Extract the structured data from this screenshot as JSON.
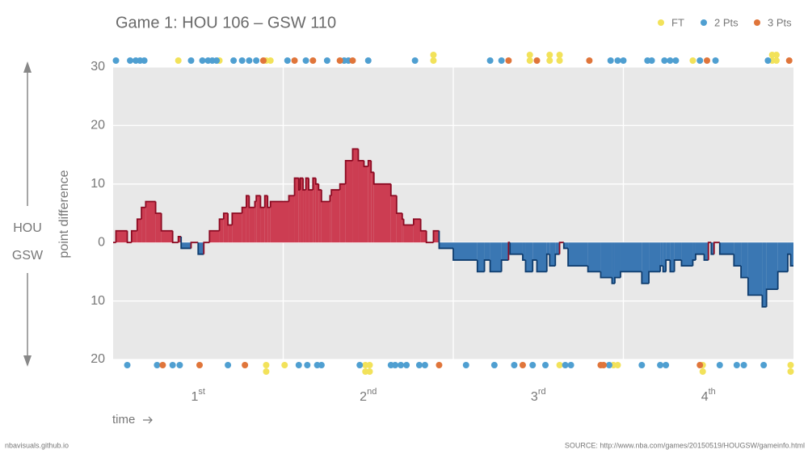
{
  "chart_data": {
    "type": "step-area",
    "title": "Game 1: HOU 106  –  GSW 110",
    "y_label": "point difference",
    "x_label": "time",
    "team_labels": [
      "HOU",
      "GSW"
    ],
    "footer_left": "nbavisuals.github.io",
    "footer_right": "SOURCE: http://www.nba.com/games/20150519/HOUGSW/gameinfo.html",
    "xlim": [
      0,
      48
    ],
    "ylim": [
      -20,
      30
    ],
    "xticks": [
      12,
      24,
      36
    ],
    "period_labels": [
      {
        "value": 6,
        "label": "1st"
      },
      {
        "value": 18,
        "label": "2nd"
      },
      {
        "value": 30,
        "label": "3rd"
      },
      {
        "value": 42,
        "label": "4th"
      }
    ],
    "yticks": [
      30,
      20,
      10,
      0,
      {
        "value": -10,
        "label": "10"
      },
      {
        "value": -20,
        "label": "20"
      }
    ],
    "grid": true,
    "fill_colors": [
      "#cc3d52",
      "#3a77b3"
    ],
    "line_colors": [
      "#8c0a22",
      "#0e3c6e"
    ],
    "x": [
      0,
      0.2,
      1.0,
      1.3,
      1.7,
      2.0,
      2.3,
      3.0,
      3.4,
      4.2,
      4.6,
      4.8,
      5.5,
      6.0,
      6.4,
      6.8,
      7.5,
      7.8,
      8.1,
      8.4,
      9.1,
      9.4,
      9.6,
      10.0,
      10.1,
      10.4,
      10.7,
      10.9,
      11.1,
      12.4,
      12.8,
      13.1,
      13.2,
      13.4,
      13.6,
      13.8,
      14.1,
      14.3,
      14.5,
      14.7,
      15.3,
      15.4,
      16.0,
      16.4,
      16.9,
      17.3,
      17.7,
      18.0,
      18.2,
      18.4,
      19.6,
      20.0,
      20.4,
      20.5,
      21.2,
      21.7,
      22.1,
      22.6,
      23.0,
      24.0,
      25.7,
      26.2,
      26.6,
      27.4,
      27.9,
      28.0,
      28.9,
      29.1,
      29.6,
      29.9,
      30.6,
      30.8,
      31.2,
      31.5,
      31.8,
      32.1,
      33.5,
      34.4,
      35.2,
      35.4,
      35.8,
      37.3,
      37.8,
      38.6,
      38.8,
      39.0,
      39.3,
      39.6,
      40.1,
      40.9,
      41.1,
      41.7,
      42.0,
      42.2,
      42.4,
      42.8,
      43.8,
      44.3,
      44.8,
      45.8,
      46.1,
      46.9,
      47.6,
      47.8
    ],
    "values": [
      0,
      2,
      0,
      2,
      4,
      6,
      7,
      5,
      2,
      0,
      1,
      -1,
      0,
      -2,
      0,
      2,
      4,
      5,
      3,
      5,
      6,
      8,
      6,
      7,
      8,
      6,
      8,
      6,
      7,
      8,
      11,
      9,
      11,
      9,
      11,
      9,
      11,
      10,
      9,
      7,
      8,
      9,
      10,
      14,
      16,
      14,
      13,
      14,
      12,
      10,
      8,
      5,
      4,
      3,
      4,
      2,
      0,
      2,
      -1,
      -3,
      -5,
      -3,
      -5,
      -3,
      0,
      -2,
      -3,
      -5,
      -3,
      -5,
      -2,
      -4,
      -2,
      0,
      -1,
      -4,
      -5,
      -6,
      -7,
      -6,
      -5,
      -7,
      -5,
      -4,
      -5,
      -3,
      -5,
      -3,
      -4,
      -3,
      -2,
      -3,
      0,
      -2,
      0,
      -2,
      -4,
      -6,
      -9,
      -11,
      -8,
      -5,
      -2,
      -4
    ],
    "scoring": [
      {
        "name": "FT",
        "color": "#f2e25a",
        "hou": [
          4.6,
          7.5,
          10.8,
          11.1,
          22.6,
          22.6,
          29.4,
          29.4,
          30.8,
          30.8,
          31.5,
          31.5,
          40.9,
          46.5,
          46.5,
          46.8,
          46.8
        ],
        "gsw": [
          10.8,
          10.8,
          12.1,
          17.8,
          17.8,
          18.1,
          18.1,
          31.5,
          35.3,
          35.6,
          41.6,
          41.6,
          47.8,
          47.8
        ]
      },
      {
        "name": "2 Pts",
        "color": "#4f9fd1",
        "hou": [
          0.2,
          1.2,
          1.6,
          1.9,
          2.2,
          5.5,
          6.3,
          6.7,
          7.0,
          7.3,
          8.5,
          9.1,
          9.6,
          10.1,
          12.3,
          13.6,
          15.1,
          16.3,
          16.6,
          18.0,
          21.3,
          26.6,
          27.4,
          35.1,
          35.6,
          36.0,
          37.7,
          38.0,
          38.9,
          39.3,
          39.7,
          41.4,
          42.5,
          46.2
        ],
        "gsw": [
          1.0,
          3.1,
          4.2,
          4.7,
          8.1,
          13.1,
          13.7,
          14.4,
          14.7,
          17.4,
          19.6,
          19.9,
          20.3,
          20.7,
          21.6,
          22.0,
          24.9,
          26.9,
          28.3,
          29.6,
          30.5,
          31.9,
          32.3,
          35.0,
          37.3,
          38.6,
          39.0,
          42.8,
          44.0,
          44.5,
          45.9
        ]
      },
      {
        "name": "3 Pts",
        "color": "#e0753a",
        "hou": [
          10.6,
          12.8,
          14.1,
          16.0,
          16.9,
          27.9,
          29.9,
          33.6,
          41.9,
          47.7
        ],
        "gsw": [
          3.5,
          6.1,
          9.3,
          23.0,
          28.9,
          34.4,
          34.6,
          41.4
        ]
      }
    ]
  }
}
